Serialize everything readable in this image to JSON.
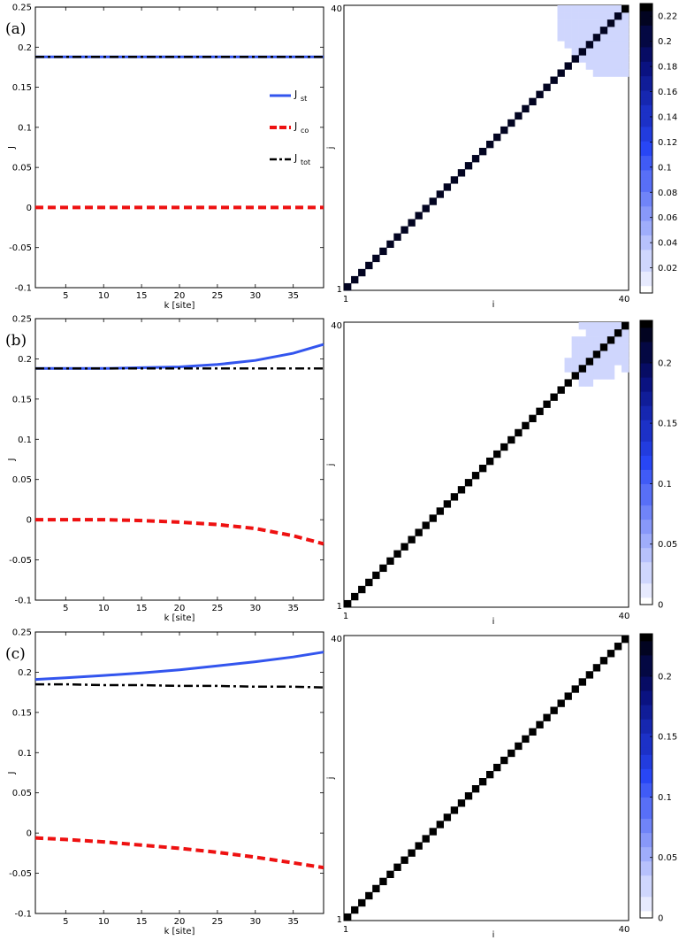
{
  "chart_data": [
    {
      "panel_label": "(a)",
      "type": "line",
      "xlabel": "k [site]",
      "ylabel": "J",
      "xlim": [
        1,
        39
      ],
      "ylim": [
        -0.1,
        0.25
      ],
      "xticks": [
        5,
        10,
        15,
        20,
        25,
        30,
        35
      ],
      "yticks": [
        -0.1,
        -0.05,
        0,
        0.05,
        0.1,
        0.15,
        0.2,
        0.25
      ],
      "legend": {
        "placement": "right",
        "entries": [
          {
            "main": "J",
            "sub": "st"
          },
          {
            "main": "J",
            "sub": "co"
          },
          {
            "main": "J",
            "sub": "tot"
          }
        ]
      },
      "x": [
        1,
        5,
        10,
        15,
        20,
        25,
        30,
        35,
        39
      ],
      "series": [
        {
          "key": "st",
          "color": "#3355ee",
          "style": "solid",
          "values": [
            0.188,
            0.188,
            0.188,
            0.188,
            0.188,
            0.188,
            0.188,
            0.188,
            0.188
          ]
        },
        {
          "key": "co",
          "color": "#ee1111",
          "style": "dashed",
          "values": [
            0,
            0,
            0,
            0,
            0,
            0,
            0,
            0,
            0
          ]
        },
        {
          "key": "tot",
          "color": "#000000",
          "style": "dashdot",
          "values": [
            0.188,
            0.188,
            0.188,
            0.188,
            0.188,
            0.188,
            0.188,
            0.188,
            0.188
          ]
        }
      ]
    },
    {
      "panel_label": "(b)",
      "type": "line",
      "xlabel": "k [site]",
      "ylabel": "J",
      "xlim": [
        1,
        39
      ],
      "ylim": [
        -0.1,
        0.25
      ],
      "xticks": [
        5,
        10,
        15,
        20,
        25,
        30,
        35
      ],
      "yticks": [
        -0.1,
        -0.05,
        0,
        0.05,
        0.1,
        0.15,
        0.2,
        0.25
      ],
      "x": [
        1,
        5,
        10,
        15,
        20,
        25,
        30,
        35,
        39
      ],
      "series": [
        {
          "key": "st",
          "color": "#3355ee",
          "style": "solid",
          "values": [
            0.188,
            0.188,
            0.188,
            0.189,
            0.19,
            0.193,
            0.198,
            0.207,
            0.218
          ]
        },
        {
          "key": "co",
          "color": "#ee1111",
          "style": "dashed",
          "values": [
            0,
            0,
            0,
            -0.001,
            -0.003,
            -0.006,
            -0.011,
            -0.02,
            -0.03
          ]
        },
        {
          "key": "tot",
          "color": "#000000",
          "style": "dashdot",
          "values": [
            0.188,
            0.188,
            0.188,
            0.188,
            0.188,
            0.188,
            0.188,
            0.188,
            0.188
          ]
        }
      ]
    },
    {
      "panel_label": "(c)",
      "type": "line",
      "xlabel": "k [site]",
      "ylabel": "J",
      "xlim": [
        1,
        39
      ],
      "ylim": [
        -0.1,
        0.25
      ],
      "xticks": [
        5,
        10,
        15,
        20,
        25,
        30,
        35
      ],
      "yticks": [
        -0.1,
        -0.05,
        0,
        0.05,
        0.1,
        0.15,
        0.2,
        0.25
      ],
      "x": [
        1,
        5,
        10,
        15,
        20,
        25,
        30,
        35,
        39
      ],
      "series": [
        {
          "key": "st",
          "color": "#3355ee",
          "style": "solid",
          "values": [
            0.191,
            0.193,
            0.196,
            0.199,
            0.203,
            0.208,
            0.213,
            0.219,
            0.225
          ]
        },
        {
          "key": "co",
          "color": "#ee1111",
          "style": "dashed",
          "values": [
            -0.006,
            -0.008,
            -0.011,
            -0.015,
            -0.019,
            -0.024,
            -0.03,
            -0.037,
            -0.043
          ]
        },
        {
          "key": "tot",
          "color": "#000000",
          "style": "dashdot",
          "values": [
            0.185,
            0.185,
            0.184,
            0.184,
            0.183,
            0.183,
            0.182,
            0.182,
            0.181
          ]
        }
      ]
    },
    {
      "type": "heatmap",
      "xlabel": "i",
      "ylabel": "j",
      "grid_size": 40,
      "x_tick_labels": [
        "1",
        "40"
      ],
      "y_tick_labels": [
        "1",
        "40"
      ],
      "diagonal_value": 0.22,
      "block_value": 0.02,
      "block_cells": [
        [
          33,
          40
        ],
        [
          33,
          34
        ],
        [
          34,
          40
        ],
        [
          35,
          40
        ],
        [
          36,
          40
        ],
        [
          37,
          40
        ],
        [
          38,
          40
        ],
        [
          39,
          40
        ],
        [
          40,
          40
        ],
        [
          33,
          33
        ],
        [
          33,
          35
        ],
        [
          33,
          36
        ],
        [
          33,
          37
        ],
        [
          33,
          38
        ],
        [
          33,
          39
        ],
        [
          34,
          34
        ],
        [
          34,
          35
        ],
        [
          34,
          36
        ],
        [
          34,
          37
        ],
        [
          34,
          38
        ],
        [
          34,
          39
        ],
        [
          35,
          35
        ],
        [
          35,
          36
        ],
        [
          35,
          37
        ],
        [
          35,
          38
        ],
        [
          35,
          39
        ],
        [
          36,
          36
        ],
        [
          36,
          37
        ],
        [
          36,
          38
        ],
        [
          36,
          39
        ],
        [
          37,
          37
        ],
        [
          37,
          38
        ],
        [
          37,
          39
        ],
        [
          38,
          38
        ],
        [
          38,
          39
        ],
        [
          39,
          39
        ],
        [
          31,
          36
        ],
        [
          31,
          37
        ],
        [
          31,
          38
        ],
        [
          32,
          35
        ],
        [
          32,
          36
        ],
        [
          32,
          37
        ],
        [
          32,
          38
        ],
        [
          32,
          39
        ],
        [
          32,
          40
        ],
        [
          31,
          39
        ],
        [
          31,
          40
        ]
      ],
      "colorbar": {
        "min": 0,
        "max": 0.23,
        "ticks": [
          0.02,
          0.04,
          0.06,
          0.08,
          0.1,
          0.12,
          0.14,
          0.16,
          0.18,
          0.2,
          0.22
        ]
      }
    },
    {
      "type": "heatmap",
      "xlabel": "i",
      "ylabel": "j",
      "grid_size": 40,
      "x_tick_labels": [
        "1",
        "40"
      ],
      "y_tick_labels": [
        "1",
        "40"
      ],
      "diagonal_value": 0.23,
      "block_value": 0.03,
      "block_cells": [
        [
          34,
          40
        ],
        [
          35,
          40
        ],
        [
          36,
          40
        ],
        [
          37,
          40
        ],
        [
          38,
          40
        ],
        [
          39,
          40
        ],
        [
          35,
          39
        ],
        [
          36,
          39
        ],
        [
          37,
          39
        ],
        [
          38,
          39
        ],
        [
          36,
          38
        ],
        [
          37,
          38
        ],
        [
          34,
          37
        ],
        [
          35,
          37
        ],
        [
          34,
          36
        ],
        [
          35,
          36
        ],
        [
          33,
          36
        ],
        [
          33,
          37
        ],
        [
          32,
          35
        ],
        [
          33,
          35
        ],
        [
          34,
          35
        ],
        [
          32,
          34
        ],
        [
          33,
          34
        ],
        [
          36,
          37
        ],
        [
          36,
          36
        ],
        [
          37,
          37
        ],
        [
          38,
          38
        ],
        [
          39,
          39
        ],
        [
          35,
          35
        ],
        [
          34,
          34
        ],
        [
          33,
          33
        ],
        [
          34,
          38
        ],
        [
          35,
          38
        ],
        [
          33,
          38
        ]
      ],
      "colorbar": {
        "min": 0,
        "max": 0.235,
        "ticks": [
          0,
          0.05,
          0.1,
          0.15,
          0.2
        ]
      }
    },
    {
      "type": "heatmap",
      "xlabel": "i",
      "ylabel": "j",
      "grid_size": 40,
      "x_tick_labels": [
        "1",
        "40"
      ],
      "y_tick_labels": [
        "1",
        "40"
      ],
      "diagonal_value": 0.23,
      "block_value": 0,
      "block_cells": [],
      "colorbar": {
        "min": 0,
        "max": 0.235,
        "ticks": [
          0,
          0.05,
          0.1,
          0.15,
          0.2
        ]
      }
    }
  ]
}
